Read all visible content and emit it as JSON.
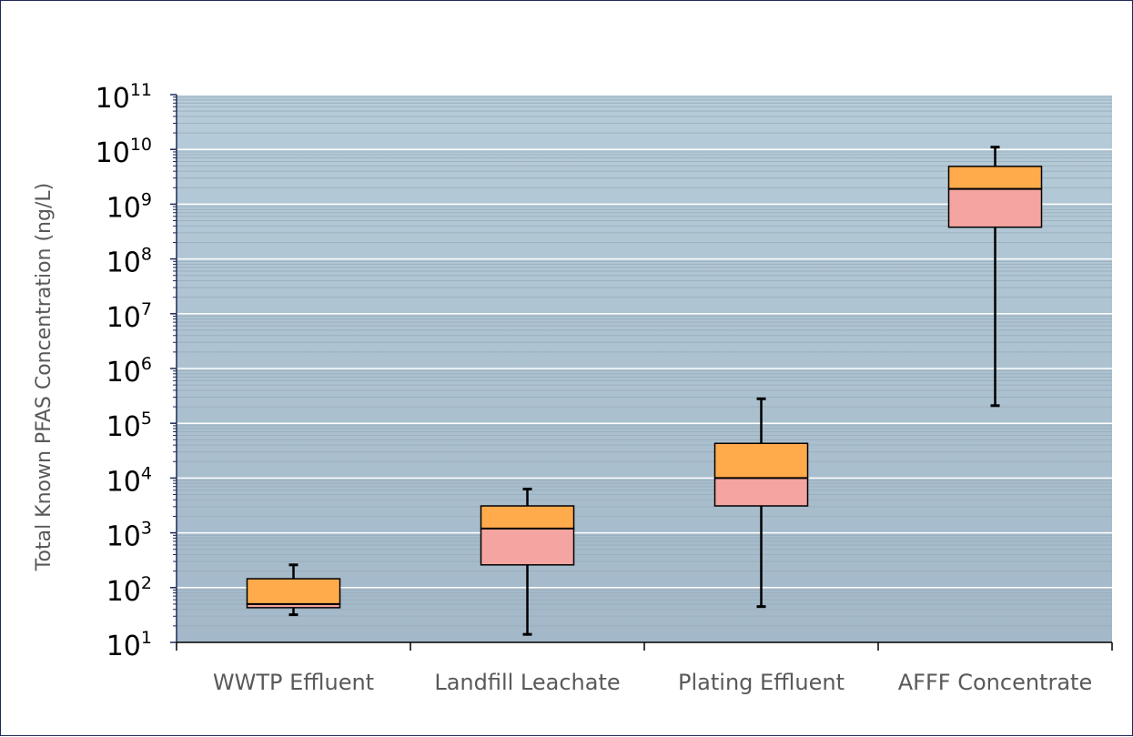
{
  "chart_data": {
    "type": "box",
    "ylabel": "Total Known PFAS Concentration (ng/L)",
    "y_scale": "log",
    "ylim": [
      10,
      100000000000
    ],
    "y_tick_values": [
      10,
      100,
      1000,
      10000,
      100000,
      1000000,
      10000000,
      100000000,
      1000000000,
      10000000000,
      100000000000
    ],
    "y_tick_labels": [
      {
        "base": "10",
        "exp": "1"
      },
      {
        "base": "10",
        "exp": "2"
      },
      {
        "base": "10",
        "exp": "3"
      },
      {
        "base": "10",
        "exp": "4"
      },
      {
        "base": "10",
        "exp": "5"
      },
      {
        "base": "10",
        "exp": "6"
      },
      {
        "base": "10",
        "exp": "7"
      },
      {
        "base": "10",
        "exp": "8"
      },
      {
        "base": "10",
        "exp": "9"
      },
      {
        "base": "10",
        "exp": "10"
      },
      {
        "base": "10",
        "exp": "11"
      }
    ],
    "categories": [
      "WWTP Effluent",
      "Landfill Leachate",
      "Plating Effluent",
      "AFFF Concentrate"
    ],
    "boxes": [
      {
        "category": "WWTP Effluent",
        "min": 32,
        "q1": 43,
        "median": 50,
        "q3": 145,
        "max": 260
      },
      {
        "category": "Landfill Leachate",
        "min": 14,
        "q1": 260,
        "median": 1200,
        "q3": 3100,
        "max": 6300
      },
      {
        "category": "Plating Effluent",
        "min": 45,
        "q1": 3100,
        "median": 10000,
        "q3": 43000,
        "max": 280000
      },
      {
        "category": "AFFF Concentrate",
        "min": 210000,
        "q1": 380000000,
        "median": 1900000000,
        "q3": 4900000000,
        "max": 11000000000
      }
    ],
    "colors": {
      "upper_box": "#ffab4c",
      "lower_box": "#f4a4a1",
      "plot_bg_top": "#b6ccd9",
      "plot_bg_bottom": "#a3b8c8",
      "major_grid": "#ffffff",
      "whisker": "#000000"
    },
    "grid": true,
    "legend": "none"
  }
}
